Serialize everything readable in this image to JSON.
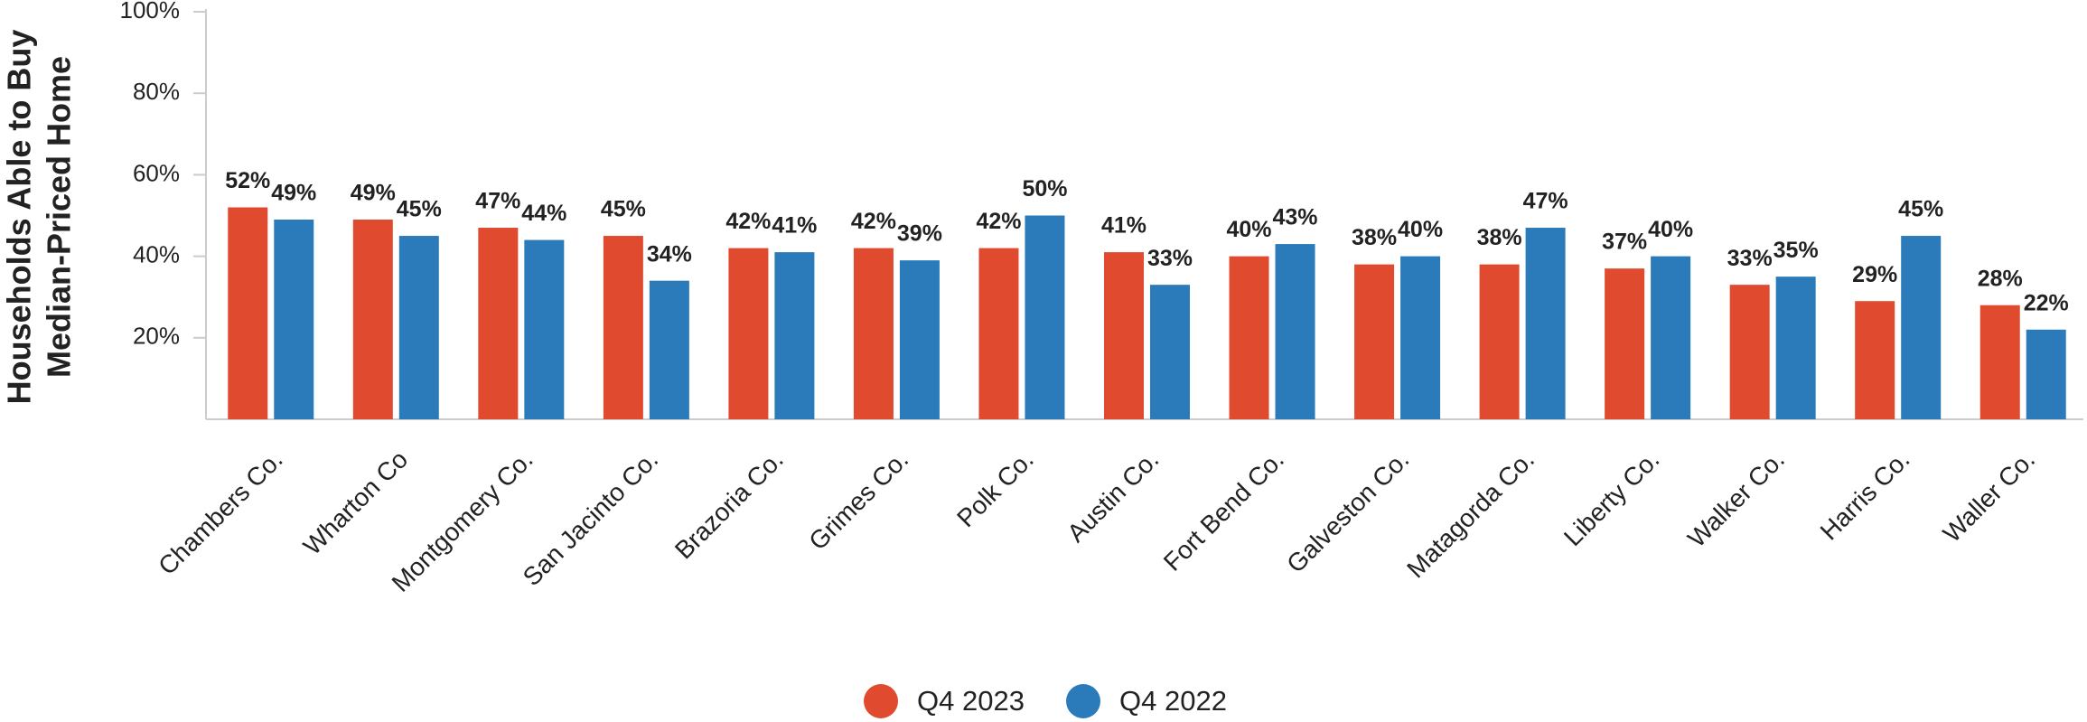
{
  "chart_data": {
    "type": "bar",
    "y_label": [
      "Households Able to Buy",
      "Median-Priced Home"
    ],
    "categories": [
      "Chambers Co.",
      "Wharton Co",
      "Montgomery Co.",
      "San Jacinto Co.",
      "Brazoria Co.",
      "Grimes Co.",
      "Polk Co.",
      "Austin Co.",
      "Fort Bend Co.",
      "Galveston Co.",
      "Matagorda Co.",
      "Liberty Co.",
      "Walker Co.",
      "Harris Co.",
      "Waller Co."
    ],
    "series": [
      {
        "name": "Q4 2023",
        "color": "#e04a2f",
        "values": [
          52,
          49,
          47,
          45,
          42,
          42,
          42,
          41,
          40,
          38,
          38,
          37,
          33,
          29,
          28
        ],
        "value_labels": [
          "52%",
          "49%",
          "47%",
          "45%",
          "42%",
          "42%",
          "42%",
          "41%",
          "40%",
          "38%",
          "38%",
          "37%",
          "33%",
          "29%",
          "28%"
        ]
      },
      {
        "name": "Q4 2022",
        "color": "#2b7bba",
        "values": [
          49,
          45,
          44,
          34,
          41,
          39,
          50,
          33,
          43,
          40,
          47,
          40,
          35,
          45,
          22
        ],
        "value_labels": [
          "49%",
          "45%",
          "44%",
          "34%",
          "41%",
          "39%",
          "50%",
          "33%",
          "43%",
          "40%",
          "47%",
          "40%",
          "35%",
          "45%",
          "22%"
        ]
      }
    ],
    "ylim": [
      0,
      100
    ],
    "yticks": [
      {
        "value": 20,
        "label": "20%"
      },
      {
        "value": 40,
        "label": "40%"
      },
      {
        "value": 60,
        "label": "60%"
      },
      {
        "value": 80,
        "label": "80%"
      },
      {
        "value": 100,
        "label": "100%"
      }
    ],
    "legend": "bottom"
  }
}
